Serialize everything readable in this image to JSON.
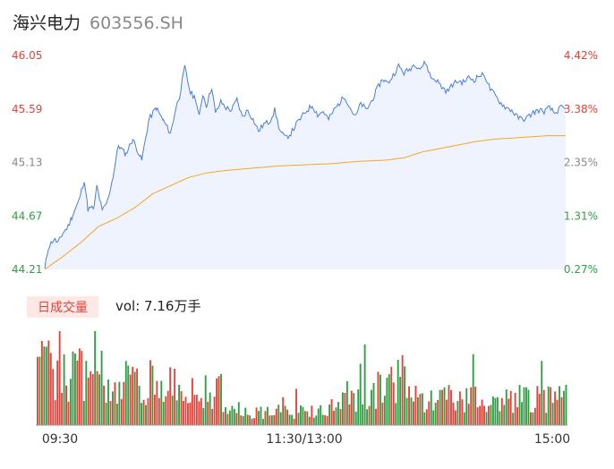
{
  "header": {
    "stock_name": "海兴电力",
    "stock_code": "603556.SH"
  },
  "colors": {
    "price_line": "#4a7ee0",
    "price_fill": "#eef3fd",
    "avg_line": "#f5a623",
    "up": "#e8413a",
    "down": "#2ea043",
    "neutral_axis": "#888888",
    "volume_tag_bg": "#fde8e5",
    "volume_tag_text": "#e8413a"
  },
  "chart_data": [
    {
      "type": "line",
      "name": "intraday-price",
      "x_ticks": [
        "09:30",
        "11:30/13:00",
        "15:00"
      ],
      "y_left_ticks": [
        "46.05",
        "45.59",
        "45.13",
        "44.67",
        "44.21"
      ],
      "y_right_ticks": [
        "4.42%",
        "3.38%",
        "2.35%",
        "1.31%",
        "0.27%"
      ],
      "ylim": [
        44.21,
        46.05
      ],
      "grid": false,
      "series": [
        {
          "role": "price",
          "keypoints": [
            [
              0,
              44.21
            ],
            [
              4,
              44.4
            ],
            [
              10,
              44.47
            ],
            [
              15,
              44.44
            ],
            [
              20,
              44.52
            ],
            [
              26,
              44.58
            ],
            [
              30,
              44.66
            ],
            [
              38,
              44.8
            ],
            [
              44,
              44.98
            ],
            [
              48,
              44.73
            ],
            [
              55,
              44.74
            ],
            [
              58,
              44.93
            ],
            [
              64,
              44.71
            ],
            [
              70,
              44.8
            ],
            [
              76,
              45.01
            ],
            [
              82,
              45.28
            ],
            [
              90,
              45.2
            ],
            [
              98,
              45.33
            ],
            [
              108,
              45.15
            ],
            [
              116,
              45.5
            ],
            [
              124,
              45.6
            ],
            [
              132,
              45.49
            ],
            [
              140,
              45.38
            ],
            [
              146,
              45.6
            ],
            [
              150,
              45.7
            ],
            [
              156,
              45.95
            ],
            [
              162,
              45.73
            ],
            [
              168,
              45.68
            ],
            [
              172,
              45.52
            ],
            [
              176,
              45.72
            ],
            [
              180,
              45.62
            ],
            [
              186,
              45.78
            ],
            [
              190,
              45.55
            ],
            [
              196,
              45.65
            ],
            [
              202,
              45.6
            ],
            [
              208,
              45.58
            ],
            [
              214,
              45.67
            ],
            [
              220,
              45.52
            ],
            [
              226,
              45.58
            ],
            [
              232,
              45.5
            ],
            [
              238,
              45.4
            ],
            [
              244,
              45.46
            ],
            [
              250,
              45.48
            ],
            [
              256,
              45.58
            ],
            [
              262,
              45.4
            ],
            [
              268,
              45.34
            ],
            [
              274,
              45.38
            ],
            [
              280,
              45.46
            ],
            [
              286,
              45.52
            ],
            [
              292,
              45.58
            ],
            [
              298,
              45.62
            ],
            [
              304,
              45.54
            ],
            [
              310,
              45.57
            ],
            [
              316,
              45.5
            ],
            [
              322,
              45.58
            ],
            [
              328,
              45.64
            ],
            [
              334,
              45.7
            ],
            [
              340,
              45.6
            ],
            [
              346,
              45.52
            ],
            [
              352,
              45.64
            ],
            [
              358,
              45.58
            ],
            [
              364,
              45.66
            ],
            [
              370,
              45.76
            ],
            [
              376,
              45.85
            ],
            [
              382,
              45.81
            ],
            [
              388,
              45.88
            ],
            [
              394,
              45.96
            ],
            [
              400,
              45.9
            ],
            [
              406,
              45.93
            ],
            [
              412,
              45.98
            ],
            [
              418,
              45.94
            ],
            [
              424,
              45.99
            ],
            [
              430,
              45.86
            ],
            [
              436,
              45.84
            ],
            [
              442,
              45.78
            ],
            [
              448,
              45.74
            ],
            [
              454,
              45.8
            ],
            [
              460,
              45.83
            ],
            [
              466,
              45.82
            ],
            [
              472,
              45.86
            ],
            [
              478,
              45.84
            ],
            [
              484,
              45.88
            ],
            [
              490,
              45.88
            ],
            [
              496,
              45.76
            ],
            [
              502,
              45.7
            ],
            [
              508,
              45.64
            ],
            [
              514,
              45.6
            ],
            [
              520,
              45.58
            ],
            [
              526,
              45.52
            ],
            [
              532,
              45.5
            ],
            [
              538,
              45.52
            ],
            [
              544,
              45.56
            ],
            [
              550,
              45.58
            ],
            [
              556,
              45.57
            ],
            [
              562,
              45.6
            ],
            [
              568,
              45.55
            ],
            [
              574,
              45.6
            ],
            [
              580,
              45.59
            ]
          ]
        },
        {
          "role": "average",
          "keypoints": [
            [
              0,
              44.21
            ],
            [
              20,
              44.32
            ],
            [
              40,
              44.44
            ],
            [
              60,
              44.58
            ],
            [
              80,
              44.65
            ],
            [
              100,
              44.74
            ],
            [
              120,
              44.86
            ],
            [
              140,
              44.93
            ],
            [
              160,
              45.0
            ],
            [
              180,
              45.04
            ],
            [
              200,
              45.06
            ],
            [
              230,
              45.08
            ],
            [
              260,
              45.1
            ],
            [
              290,
              45.11
            ],
            [
              320,
              45.12
            ],
            [
              350,
              45.14
            ],
            [
              380,
              45.15
            ],
            [
              400,
              45.17
            ],
            [
              420,
              45.22
            ],
            [
              440,
              45.25
            ],
            [
              460,
              45.28
            ],
            [
              480,
              45.31
            ],
            [
              500,
              45.33
            ],
            [
              520,
              45.34
            ],
            [
              540,
              45.35
            ],
            [
              560,
              45.36
            ],
            [
              580,
              45.36
            ]
          ]
        }
      ]
    },
    {
      "type": "bar",
      "name": "volume",
      "title": "日成交量",
      "summary": "vol: 7.16万手",
      "bar_count": 240,
      "seed": 37,
      "ylim": [
        0,
        100
      ]
    }
  ]
}
